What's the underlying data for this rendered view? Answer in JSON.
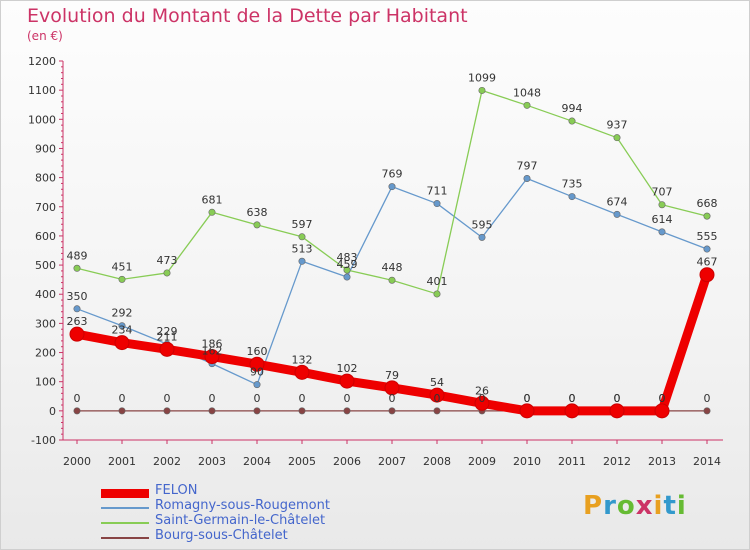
{
  "header": {
    "title": "Evolution du Montant de la Dette par Habitant",
    "subtitle": "(en €)"
  },
  "logo": {
    "text": "Proxiti",
    "letter_colors": [
      "#e8a020",
      "#3399cc",
      "#66bb33",
      "#cc3366",
      "#e8a020",
      "#3399cc",
      "#66bb33"
    ]
  },
  "chart_data": {
    "type": "line",
    "x": [
      "2000",
      "2001",
      "2002",
      "2003",
      "2004",
      "2005",
      "2006",
      "2007",
      "2008",
      "2009",
      "2010",
      "2011",
      "2012",
      "2013",
      "2014"
    ],
    "ylim": [
      -100,
      1200
    ],
    "yticks": [
      -100,
      0,
      100,
      200,
      300,
      400,
      500,
      600,
      700,
      800,
      900,
      1000,
      1100,
      1200
    ],
    "grid": false,
    "legend_position": "bottom-left",
    "series": [
      {
        "name": "FELON",
        "color": "#ee0000",
        "width": "thick",
        "values": [
          263,
          234,
          211,
          186,
          160,
          132,
          102,
          79,
          54,
          26,
          0,
          0,
          0,
          0,
          467
        ]
      },
      {
        "name": "Romagny-sous-Rougemont",
        "color": "#6699cc",
        "width": "thin",
        "values": [
          350,
          292,
          229,
          162,
          90,
          513,
          459,
          769,
          711,
          595,
          797,
          735,
          674,
          614,
          555
        ]
      },
      {
        "name": "Saint-Germain-le-Châtelet",
        "color": "#88cc55",
        "width": "thin",
        "values": [
          489,
          451,
          473,
          681,
          638,
          597,
          483,
          448,
          401,
          1099,
          1048,
          994,
          937,
          707,
          668
        ]
      },
      {
        "name": "Bourg-sous-Châtelet",
        "color": "#884444",
        "width": "thin",
        "values": [
          0,
          0,
          0,
          0,
          0,
          0,
          0,
          0,
          0,
          0,
          0,
          0,
          0,
          0,
          0
        ]
      }
    ]
  }
}
